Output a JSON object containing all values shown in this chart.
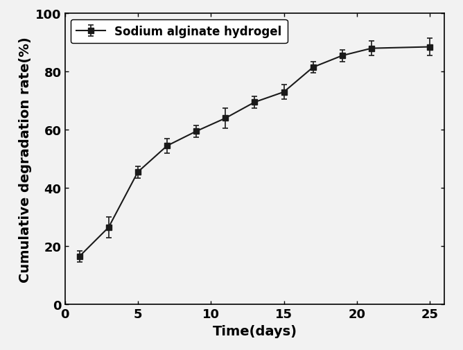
{
  "x": [
    1,
    3,
    5,
    7,
    9,
    11,
    13,
    15,
    17,
    19,
    21,
    25
  ],
  "y": [
    16.5,
    26.5,
    45.5,
    54.5,
    59.5,
    64.0,
    69.5,
    73.0,
    81.5,
    85.5,
    88.0,
    88.5
  ],
  "yerr": [
    2.0,
    3.5,
    2.0,
    2.5,
    2.0,
    3.5,
    2.0,
    2.5,
    2.0,
    2.0,
    2.5,
    3.0
  ],
  "xlabel": "Time(days)",
  "ylabel": "Cumulative degradation rate(%)",
  "legend_label": "Sodium alginate hydrogel",
  "xlim": [
    0,
    26
  ],
  "ylim": [
    0,
    100
  ],
  "xticks": [
    0,
    5,
    10,
    15,
    20,
    25
  ],
  "yticks": [
    0,
    20,
    40,
    60,
    80,
    100
  ],
  "line_color": "#1a1a1a",
  "marker": "s",
  "marker_size": 5.5,
  "line_width": 1.5,
  "capsize": 3,
  "axis_fontsize": 14,
  "tick_fontsize": 13,
  "legend_fontsize": 12,
  "elinewidth": 1.2,
  "capthick": 1.2,
  "bg_color": "#f2f2f2"
}
